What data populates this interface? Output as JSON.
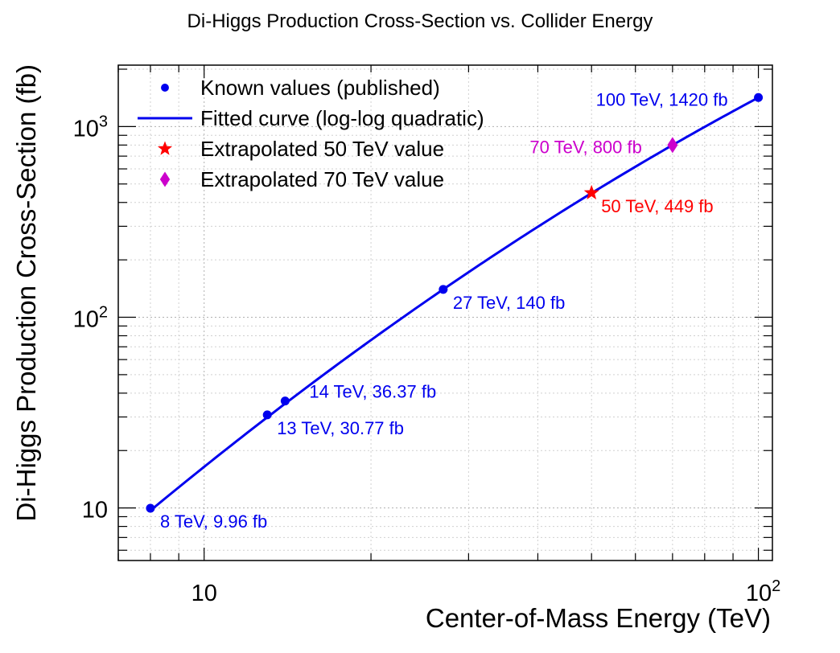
{
  "chart_data": {
    "type": "line",
    "title": "Di-Higgs Production Cross-Section vs. Collider Energy",
    "xlabel": "Center-of-Mass Energy (TeV)",
    "ylabel": "Di-Higgs Production Cross-Section (fb)",
    "xscale": "log",
    "yscale": "log",
    "xlim": [
      7,
      106
    ],
    "ylim": [
      5.3,
      2100
    ],
    "grid": true,
    "x_tick_labels": [
      {
        "value": 10,
        "base": "10",
        "exp": ""
      },
      {
        "value": 100,
        "base": "10",
        "exp": "2"
      }
    ],
    "y_tick_labels": [
      {
        "value": 10,
        "base": "10",
        "exp": ""
      },
      {
        "value": 100,
        "base": "10",
        "exp": "2"
      },
      {
        "value": 1000,
        "base": "10",
        "exp": "3"
      }
    ],
    "legend": {
      "position": "top-left",
      "entries": [
        {
          "label": "Known values (published)",
          "marker": "circle",
          "color": "#0000ee"
        },
        {
          "label": "Fitted curve (log-log quadratic)",
          "marker": "line",
          "color": "#0000ee"
        },
        {
          "label": "Extrapolated 50 TeV value",
          "marker": "star",
          "color": "#ff0000"
        },
        {
          "label": "Extrapolated 70 TeV value",
          "marker": "diamond",
          "color": "#cc00cc"
        }
      ]
    },
    "series": [
      {
        "name": "Known values (published)",
        "kind": "points",
        "color": "#0000ee",
        "points": [
          {
            "x": 8,
            "y": 9.96,
            "label": "8 TeV, 9.96 fb",
            "label_pos": "right-below"
          },
          {
            "x": 13,
            "y": 30.77,
            "label": "13 TeV, 30.77 fb",
            "label_pos": "right-below"
          },
          {
            "x": 14,
            "y": 36.37,
            "label": "14 TeV, 36.37 fb",
            "label_pos": "right-above"
          },
          {
            "x": 27,
            "y": 140,
            "label": "27 TeV, 140 fb",
            "label_pos": "right-below"
          },
          {
            "x": 100,
            "y": 1420,
            "label": "100 TeV, 1420 fb",
            "label_pos": "left"
          }
        ]
      },
      {
        "name": "Fitted curve (log-log quadratic)",
        "kind": "line",
        "color": "#0000ee",
        "points": [
          {
            "x": 8,
            "y": 9.96
          },
          {
            "x": 10,
            "y": 15.3
          },
          {
            "x": 13,
            "y": 30.77
          },
          {
            "x": 14,
            "y": 36.37
          },
          {
            "x": 20,
            "y": 75
          },
          {
            "x": 27,
            "y": 140
          },
          {
            "x": 35,
            "y": 230
          },
          {
            "x": 50,
            "y": 449
          },
          {
            "x": 70,
            "y": 800
          },
          {
            "x": 100,
            "y": 1420
          }
        ]
      },
      {
        "name": "Extrapolated 50 TeV value",
        "kind": "points",
        "color": "#ff0000",
        "marker": "star",
        "points": [
          {
            "x": 50,
            "y": 449,
            "label": "50 TeV, 449 fb",
            "label_pos": "right-below"
          }
        ]
      },
      {
        "name": "Extrapolated 70 TeV value",
        "kind": "points",
        "color": "#cc00cc",
        "marker": "diamond",
        "points": [
          {
            "x": 70,
            "y": 800,
            "label": "70 TeV, 800 fb",
            "label_pos": "left"
          }
        ]
      }
    ]
  }
}
